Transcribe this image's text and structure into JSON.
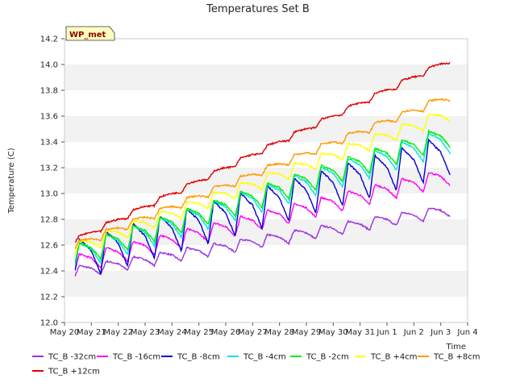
{
  "chart_data": {
    "type": "line",
    "title": "Temperatures Set B",
    "xlabel": "Time",
    "ylabel": "Temperature (C)",
    "badge": "WP_met",
    "ylim": [
      12.0,
      14.2
    ],
    "yticks": [
      "12.0",
      "12.2",
      "12.4",
      "12.6",
      "12.8",
      "13.0",
      "13.2",
      "13.4",
      "13.6",
      "13.8",
      "14.0",
      "14.2"
    ],
    "xticks": [
      "May 20",
      "May 21",
      "May 22",
      "May 23",
      "May 24",
      "May 25",
      "May 26",
      "May 27",
      "May 28",
      "May 29",
      "May 30",
      "May 31",
      "Jun 1",
      "Jun 2",
      "Jun 3",
      "Jun 4"
    ],
    "grid": "horizontal bands",
    "legend_position": "bottom",
    "series": [
      {
        "name": "TC_B -32cm",
        "color": "#9b30e0",
        "start": 12.4,
        "end": 12.88,
        "amp": 0.06
      },
      {
        "name": "TC_B -16cm",
        "color": "#ff00ff",
        "start": 12.47,
        "end": 13.15,
        "amp": 0.09
      },
      {
        "name": "TC_B -8cm",
        "color": "#0000cc",
        "start": 12.52,
        "end": 13.34,
        "amp": 0.2
      },
      {
        "name": "TC_B -4cm",
        "color": "#00e5e5",
        "start": 12.53,
        "end": 13.44,
        "amp": 0.13
      },
      {
        "name": "TC_B -2cm",
        "color": "#00ee00",
        "start": 12.54,
        "end": 13.47,
        "amp": 0.11
      },
      {
        "name": "TC_B +4cm",
        "color": "#ffff00",
        "start": 12.58,
        "end": 13.63,
        "amp": 0.07
      },
      {
        "name": "TC_B +8cm",
        "color": "#ff9900",
        "start": 12.6,
        "end": 13.76,
        "amp": 0.04
      },
      {
        "name": "TC_B +12cm",
        "color": "#e00000",
        "start": 12.64,
        "end": 14.04,
        "amp": 0.03
      }
    ]
  }
}
